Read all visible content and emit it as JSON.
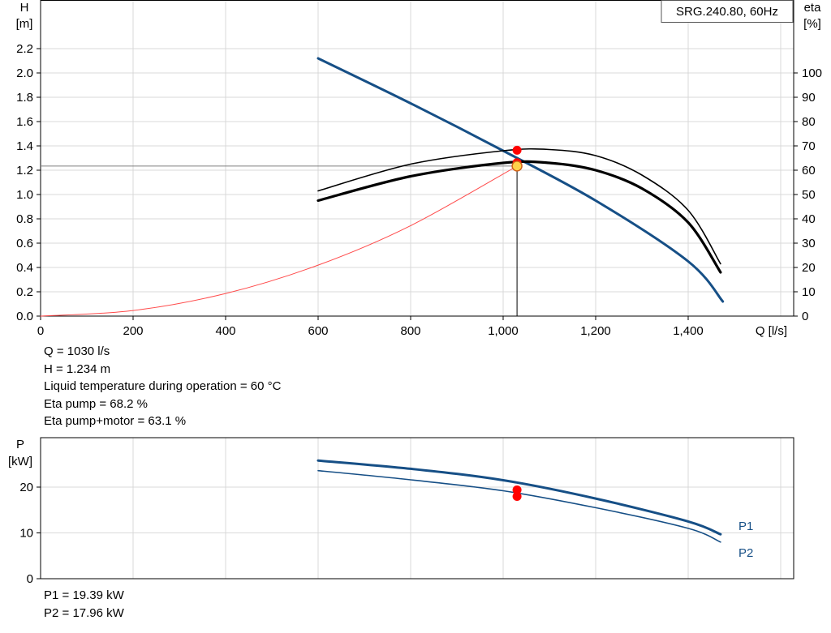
{
  "chart_data": [
    {
      "type": "line",
      "name_box": "SRG.240.80, 60Hz",
      "x_unit": "Q [l/s]",
      "left_axis": {
        "name": "H",
        "unit": "[m]",
        "range": [
          0,
          2.3
        ],
        "ticks": [
          "0.0",
          "0.2",
          "0.4",
          "0.6",
          "0.8",
          "1.0",
          "1.2",
          "1.4",
          "1.6",
          "1.8",
          "2.0",
          "2.2"
        ]
      },
      "right_axis": {
        "name": "eta",
        "unit": "[%]",
        "range": [
          0,
          115
        ],
        "ticks": [
          "0",
          "10",
          "20",
          "30",
          "40",
          "50",
          "60",
          "70",
          "80",
          "90",
          "100"
        ]
      },
      "x_axis": {
        "range": [
          0,
          1600
        ],
        "ticks": [
          "0",
          "200",
          "400",
          "600",
          "800",
          "1,000",
          "1,200",
          "1,400"
        ]
      },
      "grid": true,
      "series": [
        {
          "key": "H",
          "axis": "left",
          "color": "#164f86",
          "width": 3,
          "x": [
            600,
            800,
            1000,
            1200,
            1400,
            1475
          ],
          "y": [
            2.12,
            1.75,
            1.36,
            0.95,
            0.45,
            0.12
          ]
        },
        {
          "key": "eta_pump",
          "axis": "right",
          "color": "#000000",
          "width": 1.6,
          "x": [
            600,
            800,
            1000,
            1100,
            1200,
            1300,
            1400,
            1470
          ],
          "y": [
            51.5,
            62.5,
            68,
            68.5,
            66,
            58,
            43.5,
            21.5
          ]
        },
        {
          "key": "eta_total",
          "axis": "right",
          "color": "#000000",
          "width": 3.2,
          "x": [
            600,
            800,
            1000,
            1100,
            1200,
            1300,
            1400,
            1470
          ],
          "y": [
            47.5,
            57.5,
            63,
            63,
            60,
            52.5,
            38.5,
            18
          ]
        },
        {
          "key": "system",
          "axis": "left",
          "color": "#ff4a4a",
          "width": 1,
          "x": [
            0,
            200,
            400,
            600,
            800,
            1030
          ],
          "y": [
            0,
            0.046,
            0.186,
            0.419,
            0.744,
            1.234
          ]
        }
      ],
      "operating_point": {
        "Q": 1030,
        "H": 1.234,
        "eta_pump": 68.2,
        "eta_total": 63.1
      },
      "readout": [
        "Q = 1030 l/s",
        "H = 1.234 m",
        "Liquid temperature during operation = 60 °C",
        "Eta pump = 68.2 %",
        "Eta pump+motor = 63.1 %"
      ]
    },
    {
      "type": "line",
      "left_axis": {
        "name": "P",
        "unit": "[kW]",
        "range": [
          0,
          30
        ],
        "ticks": [
          "0",
          "10",
          "20"
        ]
      },
      "x_axis": {
        "range": [
          0,
          1600
        ]
      },
      "grid": true,
      "series": [
        {
          "key": "P1",
          "name": "P1",
          "color": "#164f86",
          "width": 3,
          "x": [
            600,
            800,
            1000,
            1200,
            1400,
            1470
          ],
          "y": [
            25.8,
            24.0,
            21.5,
            17.5,
            12.5,
            9.7
          ]
        },
        {
          "key": "P2",
          "name": "P2",
          "color": "#164f86",
          "width": 1.6,
          "x": [
            600,
            800,
            1000,
            1200,
            1400,
            1470
          ],
          "y": [
            23.6,
            21.6,
            19.2,
            15.5,
            11.0,
            8.0
          ]
        }
      ],
      "operating_point": {
        "Q": 1030,
        "P1": 19.39,
        "P2": 17.96
      },
      "readout": [
        "P1 = 19.39 kW",
        "P2 = 17.96 kW"
      ]
    }
  ],
  "colors": {
    "accent": "#164f86",
    "marker": "#ff0000",
    "system_curve": "#ff4a4a",
    "grid": "#d9d9d9"
  }
}
